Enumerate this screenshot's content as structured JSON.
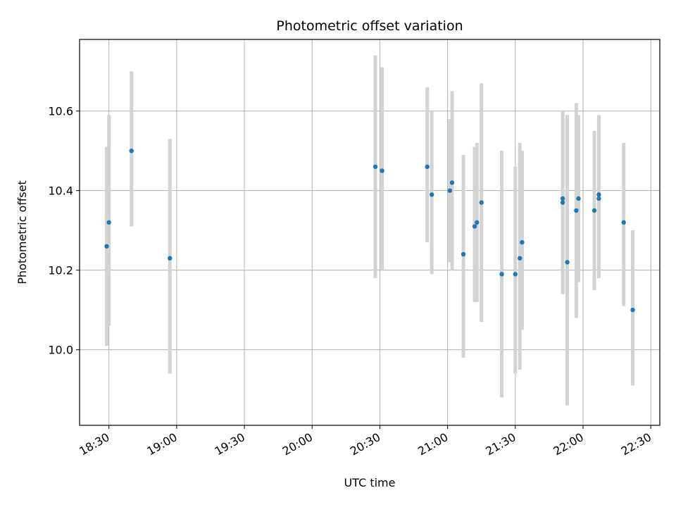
{
  "chart_data": {
    "type": "scatter",
    "title": "Photometric offset variation",
    "xlabel": "UTC time",
    "ylabel": "Photometric offset",
    "x_ticks": [
      "18:30",
      "19:00",
      "19:30",
      "20:00",
      "20:30",
      "21:00",
      "21:30",
      "22:00",
      "22:30"
    ],
    "y_ticks": [
      "10.0",
      "10.2",
      "10.4",
      "10.6"
    ],
    "xlim": [
      "18:17",
      "22:34"
    ],
    "ylim": [
      9.81,
      10.78
    ],
    "grid": true,
    "marker_color": "#1f77b4",
    "errorbar_color": "#d3d3d3",
    "points": [
      {
        "x": "18:29",
        "y": 10.26,
        "err_low": 10.01,
        "err_high": 10.51
      },
      {
        "x": "18:30",
        "y": 10.32,
        "err_low": 10.06,
        "err_high": 10.59
      },
      {
        "x": "18:40",
        "y": 10.5,
        "err_low": 10.31,
        "err_high": 10.7
      },
      {
        "x": "18:57",
        "y": 10.23,
        "err_low": 9.94,
        "err_high": 10.53
      },
      {
        "x": "20:28",
        "y": 10.46,
        "err_low": 10.18,
        "err_high": 10.74
      },
      {
        "x": "20:31",
        "y": 10.45,
        "err_low": 10.2,
        "err_high": 10.71
      },
      {
        "x": "20:51",
        "y": 10.46,
        "err_low": 10.27,
        "err_high": 10.66
      },
      {
        "x": "20:53",
        "y": 10.39,
        "err_low": 10.19,
        "err_high": 10.6
      },
      {
        "x": "21:01",
        "y": 10.4,
        "err_low": 10.22,
        "err_high": 10.58
      },
      {
        "x": "21:02",
        "y": 10.42,
        "err_low": 10.2,
        "err_high": 10.65
      },
      {
        "x": "21:07",
        "y": 10.24,
        "err_low": 9.98,
        "err_high": 10.49
      },
      {
        "x": "21:12",
        "y": 10.31,
        "err_low": 10.12,
        "err_high": 10.51
      },
      {
        "x": "21:13",
        "y": 10.32,
        "err_low": 10.12,
        "err_high": 10.52
      },
      {
        "x": "21:15",
        "y": 10.37,
        "err_low": 10.07,
        "err_high": 10.67
      },
      {
        "x": "21:24",
        "y": 10.19,
        "err_low": 9.88,
        "err_high": 10.5
      },
      {
        "x": "21:30",
        "y": 10.19,
        "err_low": 9.94,
        "err_high": 10.46
      },
      {
        "x": "21:32",
        "y": 10.23,
        "err_low": 9.95,
        "err_high": 10.52
      },
      {
        "x": "21:33",
        "y": 10.27,
        "err_low": 10.05,
        "err_high": 10.5
      },
      {
        "x": "21:51",
        "y": 10.38,
        "err_low": 10.14,
        "err_high": 10.6
      },
      {
        "x": "21:51",
        "y": 10.37,
        "err_low": 10.14,
        "err_high": 10.59
      },
      {
        "x": "21:53",
        "y": 10.22,
        "err_low": 9.86,
        "err_high": 10.59
      },
      {
        "x": "21:57",
        "y": 10.35,
        "err_low": 10.08,
        "err_high": 10.62
      },
      {
        "x": "21:58",
        "y": 10.38,
        "err_low": 10.17,
        "err_high": 10.59
      },
      {
        "x": "22:05",
        "y": 10.35,
        "err_low": 10.15,
        "err_high": 10.55
      },
      {
        "x": "22:07",
        "y": 10.39,
        "err_low": 10.18,
        "err_high": 10.59
      },
      {
        "x": "22:07",
        "y": 10.38,
        "err_low": 10.19,
        "err_high": 10.58
      },
      {
        "x": "22:18",
        "y": 10.32,
        "err_low": 10.11,
        "err_high": 10.52
      },
      {
        "x": "22:22",
        "y": 10.1,
        "err_low": 9.91,
        "err_high": 10.3
      }
    ]
  }
}
